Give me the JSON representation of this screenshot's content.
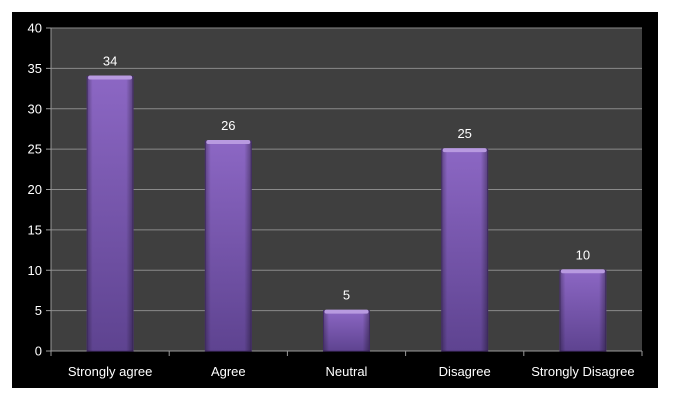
{
  "chart_data": {
    "type": "bar",
    "categories": [
      "Strongly agree",
      "Agree",
      "Neutral",
      "Disagree",
      "Strongly Disagree"
    ],
    "values": [
      34,
      26,
      5,
      25,
      10
    ],
    "data_labels": [
      "34",
      "26",
      "5",
      "25",
      "10"
    ],
    "ylim": [
      0,
      40
    ],
    "yticks": [
      0,
      5,
      10,
      15,
      20,
      25,
      30,
      35,
      40
    ],
    "ytick_labels": [
      "0",
      "5",
      "10",
      "15",
      "20",
      "25",
      "30",
      "35",
      "40"
    ],
    "grid": true,
    "title": "",
    "xlabel": "",
    "ylabel": "",
    "colors": {
      "frame": "#000000",
      "plot_area": "#3f3f3f",
      "gridline": "#8a8a8a",
      "bar_main": "#7b58b0",
      "bar_dark": "#4e3477",
      "bar_light": "#b89ae0",
      "text": "#ffffff"
    }
  }
}
